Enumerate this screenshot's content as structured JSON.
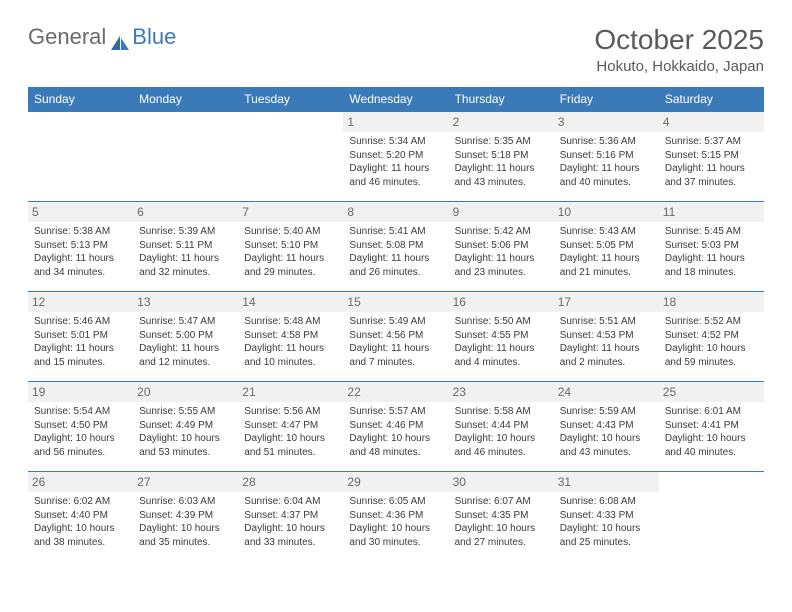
{
  "brand": {
    "part1": "General",
    "part2": "Blue"
  },
  "title": "October 2025",
  "location": "Hokuto, Hokkaido, Japan",
  "colors": {
    "header_bg": "#3a7ab8",
    "header_text": "#ffffff",
    "daynum_bg": "#f1f1f1",
    "border": "#3a7ab8",
    "text": "#3b3b3b",
    "title_text": "#5a5a5a"
  },
  "dayHeaders": [
    "Sunday",
    "Monday",
    "Tuesday",
    "Wednesday",
    "Thursday",
    "Friday",
    "Saturday"
  ],
  "weeks": [
    [
      null,
      null,
      null,
      {
        "n": "1",
        "sr": "5:34 AM",
        "ss": "5:20 PM",
        "dl": "11 hours and 46 minutes."
      },
      {
        "n": "2",
        "sr": "5:35 AM",
        "ss": "5:18 PM",
        "dl": "11 hours and 43 minutes."
      },
      {
        "n": "3",
        "sr": "5:36 AM",
        "ss": "5:16 PM",
        "dl": "11 hours and 40 minutes."
      },
      {
        "n": "4",
        "sr": "5:37 AM",
        "ss": "5:15 PM",
        "dl": "11 hours and 37 minutes."
      }
    ],
    [
      {
        "n": "5",
        "sr": "5:38 AM",
        "ss": "5:13 PM",
        "dl": "11 hours and 34 minutes."
      },
      {
        "n": "6",
        "sr": "5:39 AM",
        "ss": "5:11 PM",
        "dl": "11 hours and 32 minutes."
      },
      {
        "n": "7",
        "sr": "5:40 AM",
        "ss": "5:10 PM",
        "dl": "11 hours and 29 minutes."
      },
      {
        "n": "8",
        "sr": "5:41 AM",
        "ss": "5:08 PM",
        "dl": "11 hours and 26 minutes."
      },
      {
        "n": "9",
        "sr": "5:42 AM",
        "ss": "5:06 PM",
        "dl": "11 hours and 23 minutes."
      },
      {
        "n": "10",
        "sr": "5:43 AM",
        "ss": "5:05 PM",
        "dl": "11 hours and 21 minutes."
      },
      {
        "n": "11",
        "sr": "5:45 AM",
        "ss": "5:03 PM",
        "dl": "11 hours and 18 minutes."
      }
    ],
    [
      {
        "n": "12",
        "sr": "5:46 AM",
        "ss": "5:01 PM",
        "dl": "11 hours and 15 minutes."
      },
      {
        "n": "13",
        "sr": "5:47 AM",
        "ss": "5:00 PM",
        "dl": "11 hours and 12 minutes."
      },
      {
        "n": "14",
        "sr": "5:48 AM",
        "ss": "4:58 PM",
        "dl": "11 hours and 10 minutes."
      },
      {
        "n": "15",
        "sr": "5:49 AM",
        "ss": "4:56 PM",
        "dl": "11 hours and 7 minutes."
      },
      {
        "n": "16",
        "sr": "5:50 AM",
        "ss": "4:55 PM",
        "dl": "11 hours and 4 minutes."
      },
      {
        "n": "17",
        "sr": "5:51 AM",
        "ss": "4:53 PM",
        "dl": "11 hours and 2 minutes."
      },
      {
        "n": "18",
        "sr": "5:52 AM",
        "ss": "4:52 PM",
        "dl": "10 hours and 59 minutes."
      }
    ],
    [
      {
        "n": "19",
        "sr": "5:54 AM",
        "ss": "4:50 PM",
        "dl": "10 hours and 56 minutes."
      },
      {
        "n": "20",
        "sr": "5:55 AM",
        "ss": "4:49 PM",
        "dl": "10 hours and 53 minutes."
      },
      {
        "n": "21",
        "sr": "5:56 AM",
        "ss": "4:47 PM",
        "dl": "10 hours and 51 minutes."
      },
      {
        "n": "22",
        "sr": "5:57 AM",
        "ss": "4:46 PM",
        "dl": "10 hours and 48 minutes."
      },
      {
        "n": "23",
        "sr": "5:58 AM",
        "ss": "4:44 PM",
        "dl": "10 hours and 46 minutes."
      },
      {
        "n": "24",
        "sr": "5:59 AM",
        "ss": "4:43 PM",
        "dl": "10 hours and 43 minutes."
      },
      {
        "n": "25",
        "sr": "6:01 AM",
        "ss": "4:41 PM",
        "dl": "10 hours and 40 minutes."
      }
    ],
    [
      {
        "n": "26",
        "sr": "6:02 AM",
        "ss": "4:40 PM",
        "dl": "10 hours and 38 minutes."
      },
      {
        "n": "27",
        "sr": "6:03 AM",
        "ss": "4:39 PM",
        "dl": "10 hours and 35 minutes."
      },
      {
        "n": "28",
        "sr": "6:04 AM",
        "ss": "4:37 PM",
        "dl": "10 hours and 33 minutes."
      },
      {
        "n": "29",
        "sr": "6:05 AM",
        "ss": "4:36 PM",
        "dl": "10 hours and 30 minutes."
      },
      {
        "n": "30",
        "sr": "6:07 AM",
        "ss": "4:35 PM",
        "dl": "10 hours and 27 minutes."
      },
      {
        "n": "31",
        "sr": "6:08 AM",
        "ss": "4:33 PM",
        "dl": "10 hours and 25 minutes."
      },
      null
    ]
  ],
  "labels": {
    "sunrise": "Sunrise:",
    "sunset": "Sunset:",
    "daylight": "Daylight:"
  }
}
